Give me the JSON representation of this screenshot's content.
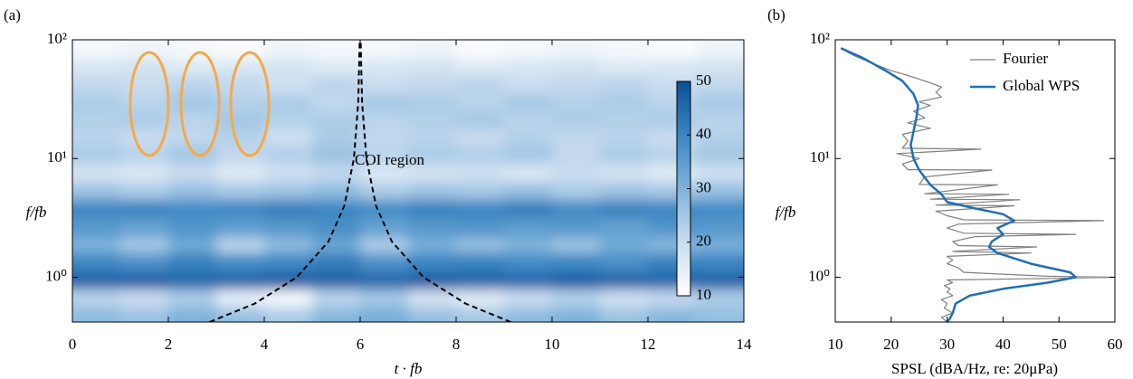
{
  "chart_data": [
    {
      "type": "contour",
      "panel_label": "(a)",
      "xlabel": "t · fb",
      "ylabel": "f/fb",
      "x_edges": [
        0,
        1,
        2,
        3,
        4,
        5,
        6,
        7,
        8,
        9,
        10,
        11,
        12,
        13,
        14
      ],
      "y_edges": [
        0.42,
        0.56,
        0.8,
        1.1,
        1.6,
        2.2,
        3.2,
        4.5,
        6.3,
        9,
        13,
        18,
        25,
        35,
        50,
        70,
        100
      ],
      "z": [
        [
          28,
          26,
          30,
          27,
          24,
          29,
          31,
          27,
          25,
          28,
          30,
          26,
          29,
          27
        ],
        [
          22,
          20,
          24,
          15,
          12,
          22,
          25,
          18,
          16,
          20,
          23,
          19,
          21,
          24
        ],
        [
          47,
          48,
          46,
          47,
          48,
          47,
          46,
          48,
          47,
          46,
          48,
          47,
          46,
          47
        ],
        [
          40,
          38,
          41,
          39,
          40,
          42,
          38,
          40,
          41,
          39,
          40,
          38,
          41,
          40
        ],
        [
          30,
          25,
          32,
          22,
          28,
          33,
          24,
          31,
          27,
          30,
          26,
          32,
          29,
          31
        ],
        [
          36,
          34,
          37,
          35,
          36,
          38,
          34,
          36,
          37,
          35,
          36,
          34,
          37,
          36
        ],
        [
          40,
          41,
          39,
          40,
          42,
          40,
          39,
          41,
          40,
          42,
          39,
          41,
          40,
          39
        ],
        [
          26,
          24,
          27,
          25,
          26,
          28,
          24,
          26,
          25,
          27,
          24,
          26,
          25,
          27
        ],
        [
          18,
          17,
          20,
          16,
          19,
          21,
          17,
          18,
          19,
          17,
          20,
          18,
          16,
          19
        ],
        [
          24,
          22,
          25,
          21,
          23,
          26,
          22,
          24,
          23,
          25,
          21,
          24,
          22,
          25
        ],
        [
          22,
          20,
          21,
          23,
          19,
          24,
          21,
          22,
          20,
          23,
          21,
          22,
          20,
          23
        ],
        [
          23,
          24,
          22,
          25,
          23,
          24,
          22,
          23,
          25,
          22,
          24,
          23,
          24,
          22
        ],
        [
          24,
          22,
          25,
          23,
          24,
          21,
          25,
          24,
          22,
          25,
          23,
          24,
          22,
          25
        ],
        [
          21,
          20,
          22,
          21,
          19,
          22,
          20,
          21,
          22,
          20,
          21,
          22,
          20,
          21
        ],
        [
          17,
          18,
          16,
          17,
          18,
          16,
          17,
          18,
          16,
          17,
          18,
          16,
          17,
          18
        ],
        [
          12,
          13,
          12,
          11,
          13,
          12,
          12,
          13,
          11,
          12,
          13,
          12,
          11,
          13
        ]
      ],
      "colormap": [
        "#ffffff",
        "#c9dcef",
        "#7fb3db",
        "#3a86c2",
        "#0d4f97"
      ],
      "clim": [
        10,
        50
      ],
      "colorbar_ticks": [
        10,
        20,
        30,
        40,
        50
      ],
      "xlim": [
        0,
        14
      ],
      "xticks": [
        0,
        2,
        4,
        6,
        8,
        10,
        12,
        14
      ],
      "ylim": [
        0.42,
        100
      ],
      "yscale": "log",
      "yticks": [
        {
          "value": 1,
          "label": "10⁰"
        },
        {
          "value": 10,
          "label": "10¹"
        },
        {
          "value": 100,
          "label": "10²"
        }
      ],
      "coi": {
        "label": "COI region",
        "color": "#000000",
        "f": [
          0.42,
          0.6,
          1,
          2,
          4,
          10,
          30,
          100
        ],
        "x_left": [
          2.86,
          3.8,
          4.68,
          5.34,
          5.67,
          5.87,
          5.96,
          5.99
        ],
        "x_right": [
          9.14,
          8.2,
          7.32,
          6.66,
          6.33,
          6.13,
          6.04,
          6.01
        ]
      }
    },
    {
      "type": "line",
      "panel_label": "(b)",
      "xlabel": "SPSL (dBA/Hz, re: 20μPa)",
      "ylabel": "f/fb",
      "xlim": [
        10,
        60
      ],
      "xticks": [
        10,
        20,
        30,
        40,
        50,
        60
      ],
      "ylim": [
        0.42,
        100
      ],
      "yscale": "log",
      "yticks": [
        {
          "value": 1,
          "label": "10⁰"
        },
        {
          "value": 10,
          "label": "10¹"
        },
        {
          "value": 100,
          "label": "10²"
        }
      ],
      "legend": "upper right",
      "series": [
        {
          "name": "Fourier",
          "color": "#808080",
          "width": 1.2,
          "f": [
            0.42,
            0.46,
            0.5,
            0.55,
            0.6,
            0.65,
            0.7,
            0.75,
            0.8,
            0.85,
            0.9,
            0.95,
            0.98,
            1.0,
            1.02,
            1.1,
            1.2,
            1.3,
            1.4,
            1.5,
            1.6,
            1.65,
            1.8,
            1.85,
            2.0,
            2.2,
            2.3,
            2.35,
            2.6,
            2.8,
            3.0,
            3.05,
            3.3,
            3.6,
            4.0,
            4.05,
            4.5,
            4.55,
            5,
            5.05,
            6,
            6.05,
            7,
            8,
            8.05,
            9,
            10,
            11,
            12,
            12.2,
            14,
            16,
            18,
            20,
            22,
            25,
            28,
            30,
            33,
            36,
            40,
            45,
            50,
            55,
            65,
            75,
            85
          ],
          "values": [
            30,
            29,
            31,
            29.5,
            30,
            29,
            31,
            30,
            30.5,
            29.5,
            31,
            30,
            50,
            60,
            48,
            33,
            32,
            30,
            31,
            30,
            45,
            31,
            46,
            32,
            31,
            35,
            53,
            33,
            30,
            32,
            58,
            33,
            30,
            28,
            42,
            28,
            43,
            27,
            41,
            26,
            39,
            25,
            26,
            38,
            23,
            22,
            25,
            21,
            36,
            22,
            23,
            22,
            27,
            23,
            26,
            24,
            27,
            25,
            29,
            28,
            29,
            26,
            23,
            20,
            16,
            13,
            11
          ]
        },
        {
          "name": "Global WPS",
          "color": "#1f6fb5",
          "width": 2.5,
          "f": [
            0.42,
            0.45,
            0.5,
            0.6,
            0.7,
            0.8,
            0.9,
            1.0,
            1.1,
            1.3,
            1.6,
            1.8,
            2.0,
            2.3,
            2.6,
            3.0,
            3.4,
            3.8,
            4.3,
            5,
            6,
            8,
            10,
            13,
            17,
            22,
            28,
            35,
            45,
            55,
            70,
            85
          ],
          "values": [
            30,
            30.5,
            31,
            31.5,
            34,
            40,
            48,
            53,
            52,
            45,
            39,
            37.5,
            38,
            40,
            39,
            42,
            40,
            35,
            30,
            29,
            27,
            25,
            24,
            23.5,
            24,
            24.5,
            24.8,
            24,
            22,
            19,
            15,
            11
          ]
        }
      ]
    }
  ]
}
